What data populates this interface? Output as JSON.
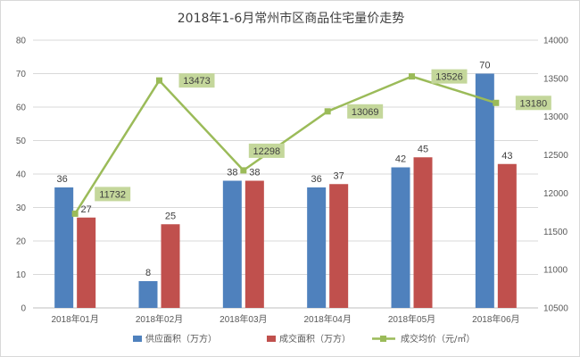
{
  "chart_data": {
    "type": "bar",
    "title": "2018年1-6月常州市区商品住宅量价走势",
    "categories": [
      "2018年01月",
      "2018年02月",
      "2018年03月",
      "2018年04月",
      "2018年05月",
      "2018年06月"
    ],
    "series": [
      {
        "name": "供应面积（万方）",
        "type": "bar",
        "axis": "left",
        "color": "#4f81bd",
        "values": [
          36,
          8,
          38,
          36,
          42,
          70
        ]
      },
      {
        "name": "成交面积（万方）",
        "type": "bar",
        "axis": "left",
        "color": "#c0504d",
        "values": [
          27,
          25,
          38,
          37,
          45,
          43
        ]
      },
      {
        "name": "成交均价（元/㎡）",
        "type": "line",
        "axis": "right",
        "color": "#9bbb59",
        "values": [
          11732,
          13473,
          12298,
          13069,
          13526,
          13180
        ]
      }
    ],
    "y_left": {
      "min": 0,
      "max": 80,
      "step": 10
    },
    "y_right": {
      "min": 10500,
      "max": 14000,
      "step": 500
    },
    "legend_position": "bottom",
    "label_bg_color": "#c4d79b",
    "grid": true,
    "gridline_color": "#d9d9d9"
  }
}
